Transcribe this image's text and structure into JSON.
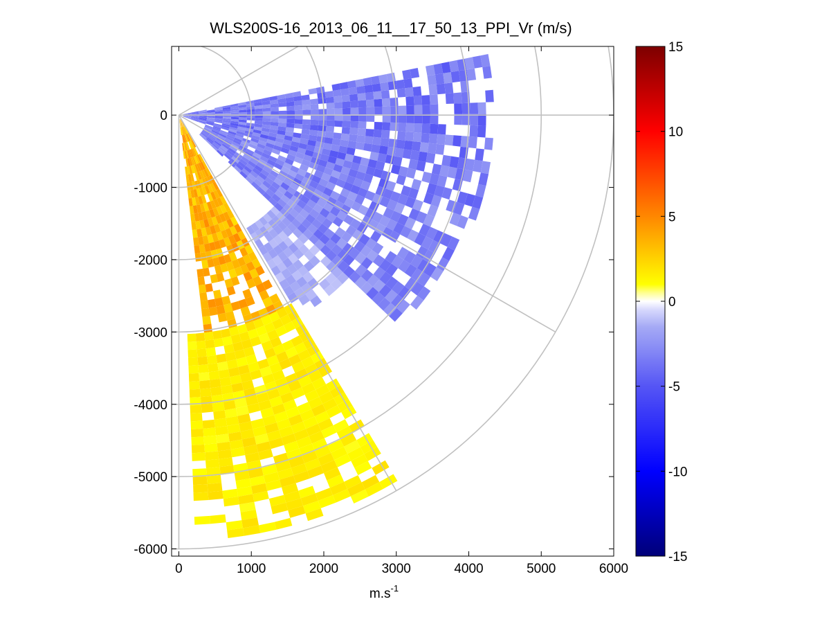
{
  "chart_data": {
    "type": "heatmap",
    "title": "WLS200S-16_2013_06_11__17_50_13_PPI_Vr (m/s)",
    "xlabel": "m.s",
    "xlabel_superscript": "-1",
    "ylabel": "",
    "xlim": [
      -100,
      6000
    ],
    "ylim": [
      -6100,
      950
    ],
    "x_ticks": [
      "0",
      "1000",
      "2000",
      "3000",
      "4000",
      "5000",
      "6000"
    ],
    "y_ticks": [
      "0",
      "-1000",
      "-2000",
      "-3000",
      "-4000",
      "-5000",
      "-6000"
    ],
    "x_tick_values": [
      0,
      1000,
      2000,
      3000,
      4000,
      5000,
      6000
    ],
    "y_tick_values": [
      0,
      -1000,
      -2000,
      -3000,
      -4000,
      -5000,
      -6000
    ],
    "polar_grid": {
      "range_rings_m": [
        1000,
        2000,
        3000,
        4000,
        5000,
        6000
      ],
      "spokes_deg": [
        30,
        0,
        -30,
        -60,
        -90
      ]
    },
    "colorbar": {
      "range": [
        -15,
        15
      ],
      "ticks": [
        "15",
        "10",
        "5",
        "0",
        "-5",
        "-10",
        "-15"
      ],
      "tick_values": [
        15,
        10,
        5,
        0,
        -5,
        -10,
        -15
      ],
      "colormap": "blue-white-red (jet-like)"
    },
    "grid": false,
    "scan_sector_deg": [
      -90,
      10
    ],
    "observed_pattern": [
      {
        "azimuth_deg_range": [
          -20,
          10
        ],
        "range_m": [
          0,
          4300
        ],
        "velocity_ms": -3.5,
        "note": "blue, strongest negative near 3000-4300 m"
      },
      {
        "azimuth_deg_range": [
          -45,
          -20
        ],
        "range_m": [
          300,
          4200
        ],
        "velocity_ms": -3.0,
        "note": "light-to-medium blue"
      },
      {
        "azimuth_deg_range": [
          -60,
          -45
        ],
        "range_m": [
          1800,
          3200
        ],
        "velocity_ms": -1.5,
        "note": "light blue, patchy"
      },
      {
        "azimuth_deg_range": [
          -84,
          -62
        ],
        "range_m": [
          0,
          3000
        ],
        "velocity_ms": 3.5,
        "note": "yellow-orange, up to ~6 m/s near the origin"
      },
      {
        "azimuth_deg_range": [
          -88,
          -60
        ],
        "range_m": [
          3000,
          5800
        ],
        "velocity_ms": 1.5,
        "note": "sparse yellow gates"
      }
    ]
  }
}
